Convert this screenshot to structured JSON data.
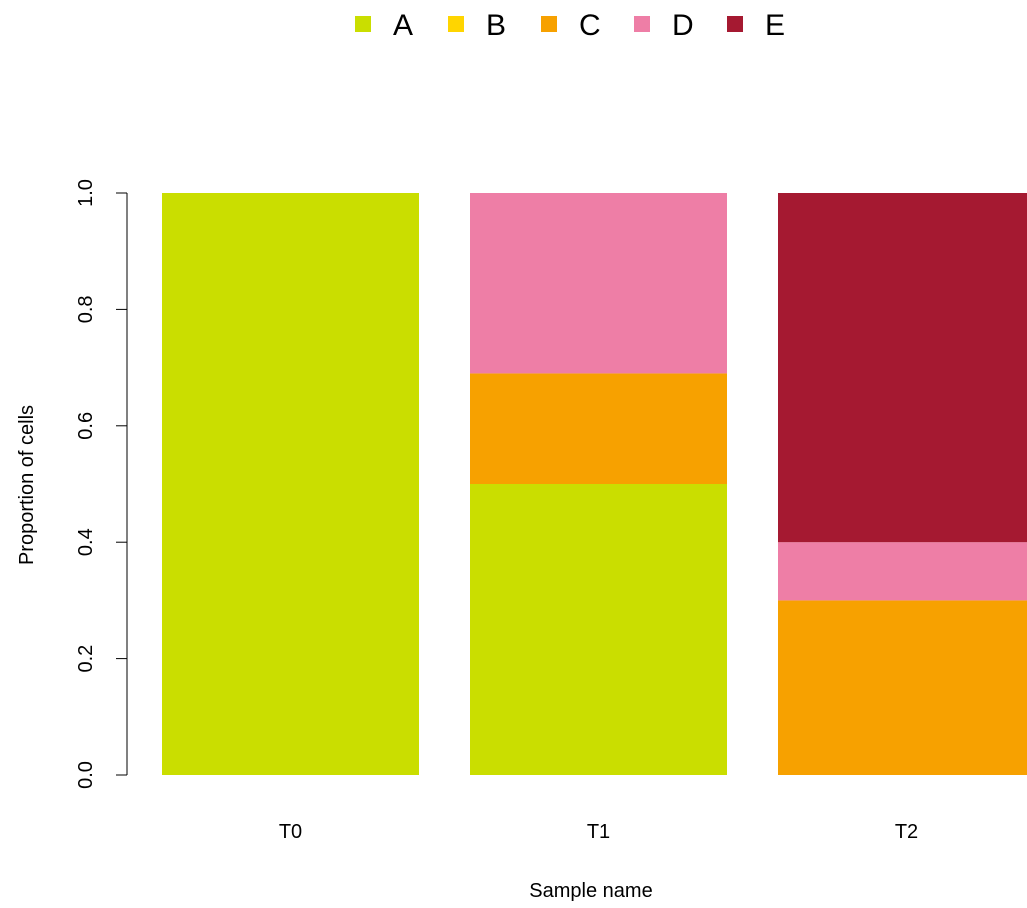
{
  "chart_data": {
    "type": "bar",
    "stacked": true,
    "title": "",
    "xlabel": "Sample name",
    "ylabel": "Proportion of cells",
    "ylim": [
      0,
      1
    ],
    "yticks": [
      "0.0",
      "0.2",
      "0.4",
      "0.6",
      "0.8",
      "1.0"
    ],
    "categories": [
      "T0",
      "T1",
      "T2"
    ],
    "legend_position": "top",
    "series": [
      {
        "name": "A",
        "color": "#cade00",
        "values": [
          1.0,
          0.5,
          0.0
        ]
      },
      {
        "name": "B",
        "color": "#ffd500",
        "values": [
          0.0,
          0.0,
          0.0
        ]
      },
      {
        "name": "C",
        "color": "#f7a100",
        "values": [
          0.0,
          0.19,
          0.3
        ]
      },
      {
        "name": "D",
        "color": "#ee7ea6",
        "values": [
          0.0,
          0.31,
          0.1
        ]
      },
      {
        "name": "E",
        "color": "#a51931",
        "values": [
          0.0,
          0.0,
          0.6
        ]
      }
    ]
  }
}
